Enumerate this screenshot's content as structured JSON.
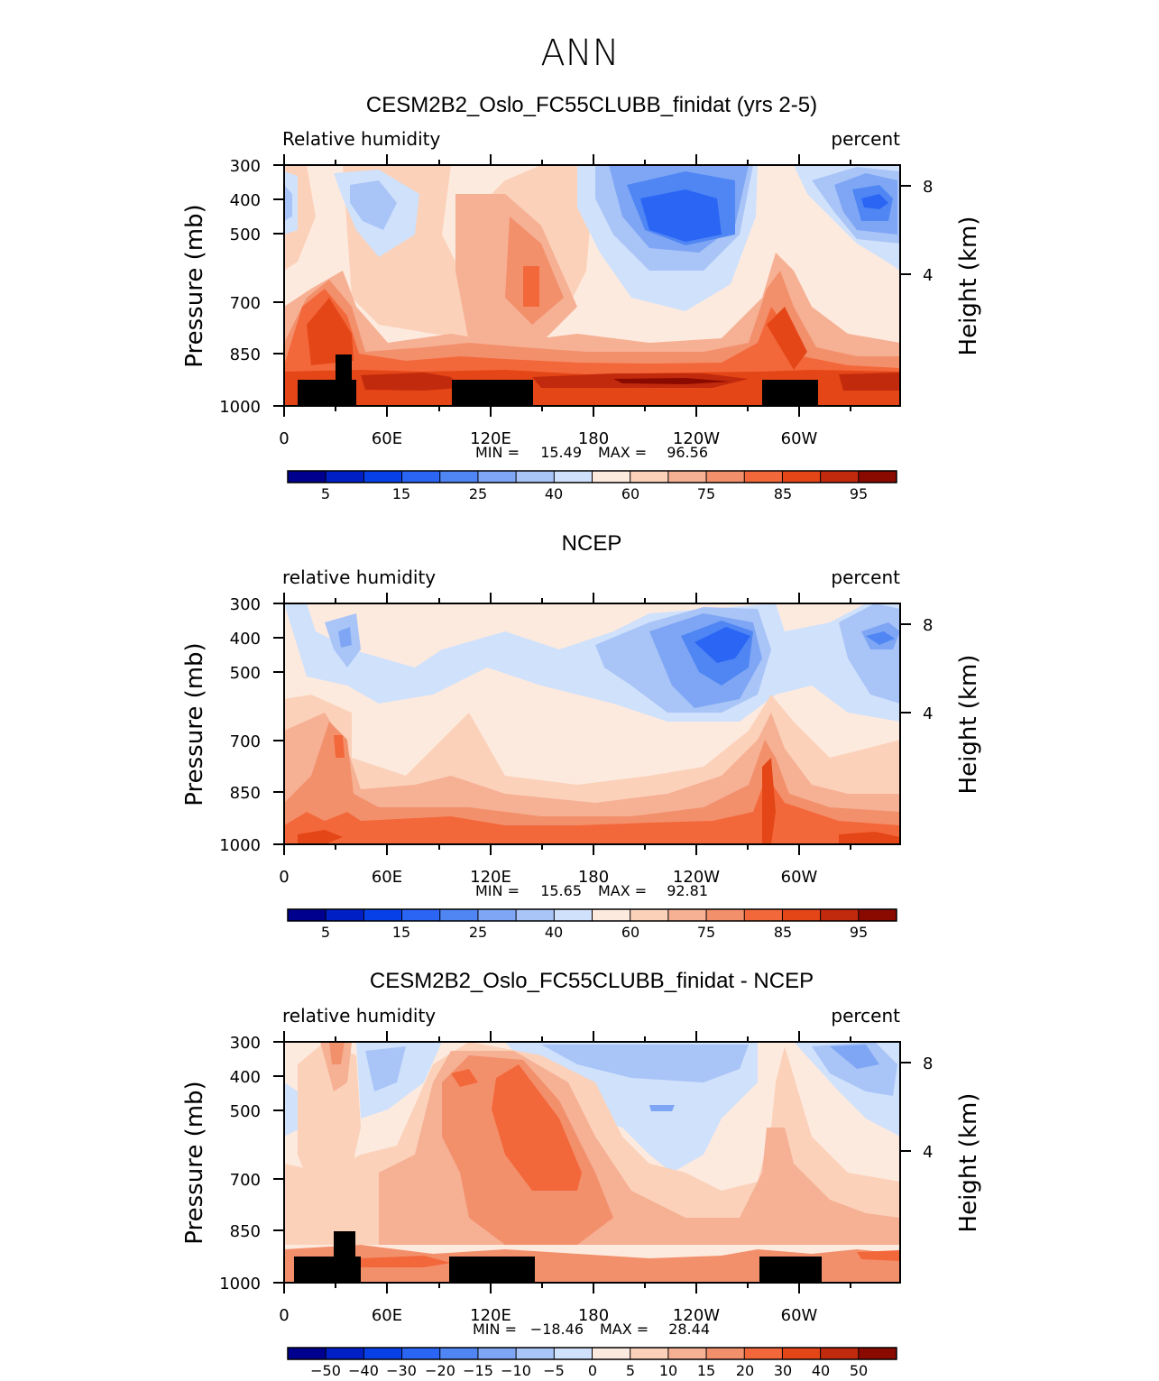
{
  "figure_title": "ANN",
  "colors": {
    "rh_levels": [
      "#00008f",
      "#0020c6",
      "#0840e8",
      "#2b65f4",
      "#4f86f4",
      "#7ea6f4",
      "#a9c4f7",
      "#d0e1fb",
      "#fdeadf",
      "#fbd1b9",
      "#f6b094",
      "#f3906c",
      "#f3683b",
      "#e44617",
      "#c12a0c",
      "#8b0a00"
    ],
    "land": "#000000"
  },
  "chart_data": [
    {
      "type": "contour",
      "title": "CESM2B2_Oslo_FC55CLUBB_finidat (yrs 2-5)",
      "left_label": "Relative  humidity",
      "right_label": "percent",
      "ylabel": "Pressure  (mb)",
      "y2label": "Height  (km)",
      "x_ticks": [
        "0",
        "60E",
        "120E",
        "180",
        "120W",
        "60W"
      ],
      "y_ticks": [
        "300",
        "400",
        "500",
        "700",
        "850",
        "1000"
      ],
      "y2_ticks": [
        "8",
        "4"
      ],
      "stats": {
        "min_label": "MIN =",
        "min": "15.49",
        "max_label": "MAX =",
        "max": "96.56"
      },
      "colorbar_labels": [
        "5",
        "15",
        "25",
        "40",
        "60",
        "75",
        "85",
        "95"
      ],
      "xlim": [
        0,
        360
      ],
      "ylim": [
        1000,
        300
      ]
    },
    {
      "type": "contour",
      "title": "NCEP",
      "left_label": "relative  humidity",
      "right_label": "percent",
      "ylabel": "Pressure  (mb)",
      "y2label": "Height  (km)",
      "x_ticks": [
        "0",
        "60E",
        "120E",
        "180",
        "120W",
        "60W"
      ],
      "y_ticks": [
        "300",
        "400",
        "500",
        "700",
        "850",
        "1000"
      ],
      "y2_ticks": [
        "8",
        "4"
      ],
      "stats": {
        "min_label": "MIN =",
        "min": "15.65",
        "max_label": "MAX =",
        "max": "92.81"
      },
      "colorbar_labels": [
        "5",
        "15",
        "25",
        "40",
        "60",
        "75",
        "85",
        "95"
      ],
      "xlim": [
        0,
        360
      ],
      "ylim": [
        1000,
        300
      ]
    },
    {
      "type": "contour",
      "title": "CESM2B2_Oslo_FC55CLUBB_finidat - NCEP",
      "left_label": "relative  humidity",
      "right_label": "percent",
      "ylabel": "Pressure  (mb)",
      "y2label": "Height  (km)",
      "x_ticks": [
        "0",
        "60E",
        "120E",
        "180",
        "120W",
        "60W"
      ],
      "y_ticks": [
        "300",
        "400",
        "500",
        "700",
        "850",
        "1000"
      ],
      "y2_ticks": [
        "8",
        "4"
      ],
      "stats": {
        "min_label": "MIN =",
        "min": "−18.46",
        "max_label": "MAX =",
        "max": "28.44"
      },
      "colorbar_labels": [
        "−50",
        "−40",
        "−30",
        "−20",
        "−15",
        "−10",
        "−5",
        "0",
        "5",
        "10",
        "15",
        "20",
        "30",
        "40",
        "50"
      ],
      "xlim": [
        0,
        360
      ],
      "ylim": [
        1000,
        300
      ]
    }
  ]
}
